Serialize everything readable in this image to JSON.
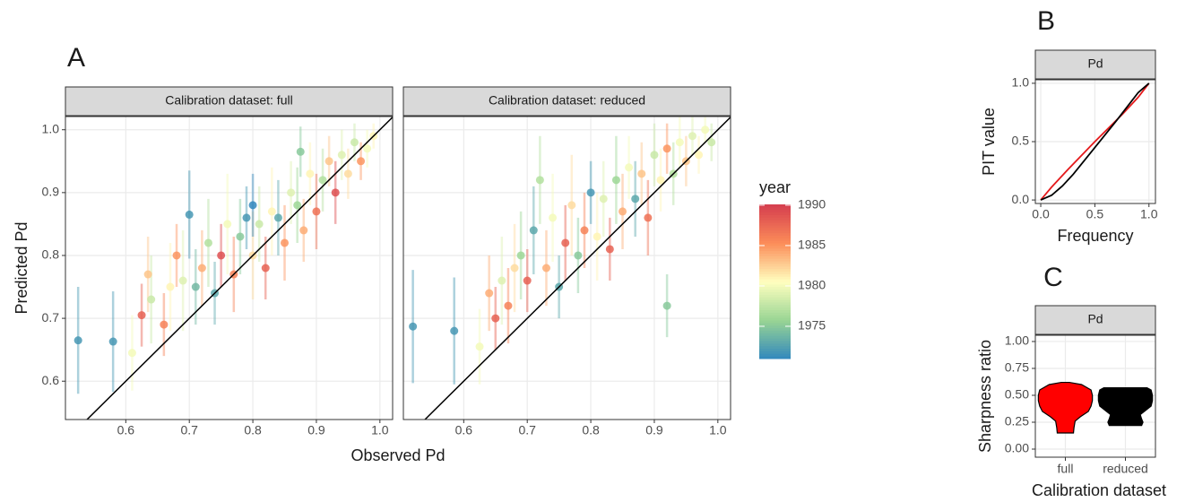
{
  "chart_data": [
    {
      "type": "scatter",
      "panel_label": "A",
      "xlabel": "Observed Pd",
      "ylabel": "Predicted Pd",
      "xlim": [
        0.505,
        1.02
      ],
      "ylim": [
        0.539,
        1.021
      ],
      "xticks": [
        0.6,
        0.7,
        0.8,
        0.9,
        {
          "value": 1,
          "label": "1.0"
        }
      ],
      "yticks": [
        0.6,
        0.7,
        0.8,
        0.9,
        {
          "value": 1,
          "label": "1.0"
        }
      ],
      "grid": true,
      "facets": [
        {
          "title": "Calibration dataset: full",
          "x": [
            0.525,
            0.58,
            0.61,
            0.625,
            0.635,
            0.64,
            0.66,
            0.67,
            0.68,
            0.69,
            0.7,
            0.71,
            0.72,
            0.73,
            0.74,
            0.75,
            0.76,
            0.77,
            0.78,
            0.79,
            0.8,
            0.81,
            0.82,
            0.83,
            0.84,
            0.85,
            0.86,
            0.87,
            0.88,
            0.89,
            0.9,
            0.91,
            0.92,
            0.93,
            0.94,
            0.95,
            0.96,
            0.97,
            0.98,
            0.99,
            0.875,
            0.8
          ],
          "y": [
            0.665,
            0.663,
            0.645,
            0.705,
            0.77,
            0.73,
            0.69,
            0.75,
            0.8,
            0.76,
            0.865,
            0.75,
            0.78,
            0.82,
            0.74,
            0.8,
            0.85,
            0.77,
            0.83,
            0.86,
            0.8,
            0.85,
            0.78,
            0.87,
            0.86,
            0.82,
            0.9,
            0.88,
            0.84,
            0.93,
            0.87,
            0.92,
            0.95,
            0.9,
            0.96,
            0.93,
            0.98,
            0.95,
            0.97,
            0.99,
            0.965,
            0.88
          ],
          "year": [
            1972,
            1972,
            1980,
            1988,
            1983,
            1978,
            1986,
            1981,
            1985,
            1979,
            1972,
            1974,
            1984,
            1977,
            1973,
            1989,
            1980,
            1986,
            1975,
            1972,
            1982,
            1978,
            1988,
            1981,
            1973,
            1985,
            1979,
            1976,
            1984,
            1981,
            1987,
            1977,
            1983,
            1989,
            1979,
            1982,
            1978,
            1985,
            1980,
            1981,
            1975,
            1971
          ],
          "error": [
            0.085,
            0.08,
            0.06,
            0.05,
            0.06,
            0.07,
            0.05,
            0.07,
            0.05,
            0.08,
            0.07,
            0.06,
            0.06,
            0.07,
            0.05,
            0.05,
            0.08,
            0.06,
            0.06,
            0.05,
            0.07,
            0.06,
            0.05,
            0.07,
            0.06,
            0.06,
            0.05,
            0.06,
            0.05,
            0.05,
            0.06,
            0.05,
            0.04,
            0.05,
            0.04,
            0.04,
            0.03,
            0.03,
            0.03,
            0.02,
            0.04,
            0.05
          ]
        },
        {
          "title": "Calibration dataset: reduced",
          "x": [
            0.52,
            0.585,
            0.625,
            0.64,
            0.65,
            0.66,
            0.67,
            0.68,
            0.69,
            0.7,
            0.71,
            0.72,
            0.73,
            0.74,
            0.75,
            0.76,
            0.77,
            0.78,
            0.79,
            0.8,
            0.81,
            0.82,
            0.83,
            0.84,
            0.85,
            0.86,
            0.87,
            0.88,
            0.89,
            0.9,
            0.91,
            0.92,
            0.93,
            0.94,
            0.95,
            0.96,
            0.97,
            0.98,
            0.99,
            0.92
          ],
          "y": [
            0.687,
            0.68,
            0.655,
            0.74,
            0.7,
            0.76,
            0.72,
            0.78,
            0.8,
            0.76,
            0.84,
            0.92,
            0.78,
            0.86,
            0.75,
            0.82,
            0.88,
            0.8,
            0.84,
            0.9,
            0.83,
            0.89,
            0.81,
            0.92,
            0.87,
            0.94,
            0.89,
            0.93,
            0.86,
            0.96,
            0.92,
            0.97,
            0.93,
            0.98,
            0.95,
            0.99,
            0.96,
            1.0,
            0.98,
            0.72
          ],
          "year": [
            1972,
            1972,
            1980,
            1984,
            1988,
            1979,
            1986,
            1982,
            1976,
            1988,
            1973,
            1977,
            1984,
            1980,
            1973,
            1988,
            1982,
            1975,
            1986,
            1972,
            1981,
            1979,
            1988,
            1976,
            1984,
            1980,
            1973,
            1983,
            1987,
            1978,
            1981,
            1985,
            1977,
            1980,
            1983,
            1979,
            1981,
            1980,
            1978,
            1975
          ],
          "error": [
            0.09,
            0.085,
            0.06,
            0.06,
            0.05,
            0.07,
            0.06,
            0.07,
            0.07,
            0.05,
            0.07,
            0.07,
            0.06,
            0.07,
            0.05,
            0.06,
            0.08,
            0.06,
            0.06,
            0.05,
            0.07,
            0.06,
            0.05,
            0.07,
            0.06,
            0.05,
            0.06,
            0.05,
            0.06,
            0.05,
            0.05,
            0.04,
            0.05,
            0.04,
            0.04,
            0.03,
            0.03,
            0.02,
            0.03,
            0.05
          ]
        }
      ],
      "colorbar": {
        "title": "year",
        "lim": [
          1971,
          1990.1
        ],
        "ticks": [
          1975,
          1980,
          1985,
          1990
        ],
        "colors": [
          "#3288bd",
          "#99d594",
          "#ffffbf",
          "#fc8d59",
          "#d53e4f"
        ]
      }
    },
    {
      "type": "line",
      "panel_label": "B",
      "strip": "Pd",
      "xlabel": "Frequency",
      "ylabel": "PIT value",
      "xlim": [
        -0.05,
        1.06
      ],
      "ylim": [
        -0.03,
        1.03
      ],
      "xticks": [
        {
          "value": 0,
          "label": "0.0"
        },
        0.5,
        {
          "value": 1,
          "label": "1.0"
        }
      ],
      "yticks": [
        {
          "value": 0,
          "label": "0.0"
        },
        0.5,
        {
          "value": 1,
          "label": "1.0"
        }
      ],
      "grid": true,
      "series": [
        {
          "color": "#e41a1c",
          "x": [
            0,
            0.1,
            0.25,
            0.5,
            0.75,
            0.9,
            1
          ],
          "y": [
            0,
            0.11,
            0.26,
            0.5,
            0.73,
            0.88,
            1
          ]
        },
        {
          "color": "#000000",
          "x": [
            0,
            0.1,
            0.2,
            0.3,
            0.5,
            0.7,
            0.8,
            0.9,
            1
          ],
          "y": [
            0,
            0.04,
            0.12,
            0.22,
            0.45,
            0.68,
            0.8,
            0.92,
            1
          ]
        }
      ]
    },
    {
      "type": "violin",
      "panel_label": "C",
      "strip": "Pd",
      "xlabel": "Calibration dataset",
      "ylabel": "Sharpness ratio",
      "categories": [
        "full",
        "reduced"
      ],
      "ylim": [
        -0.075,
        1.058
      ],
      "yticks": [
        {
          "value": 0,
          "label": "0.00"
        },
        0.25,
        {
          "value": 0.5,
          "label": "0.50"
        },
        0.75,
        {
          "value": 1,
          "label": "1.00"
        }
      ],
      "grid": true,
      "violins": [
        {
          "color": "#ff0000",
          "values": [
            0.15,
            0.2,
            0.26,
            0.3,
            0.35,
            0.4,
            0.45,
            0.5,
            0.55,
            0.6,
            0.62
          ],
          "widths": [
            0.3,
            0.32,
            0.36,
            0.55,
            0.85,
            0.95,
            1.0,
            1.0,
            0.95,
            0.6,
            0.15
          ]
        },
        {
          "color": "#000000",
          "values": [
            0.22,
            0.25,
            0.28,
            0.32,
            0.36,
            0.4,
            0.45,
            0.5,
            0.55,
            0.57
          ],
          "widths": [
            0.6,
            0.65,
            0.6,
            0.55,
            0.75,
            0.95,
            1.0,
            1.0,
            0.95,
            0.8
          ]
        }
      ]
    }
  ]
}
